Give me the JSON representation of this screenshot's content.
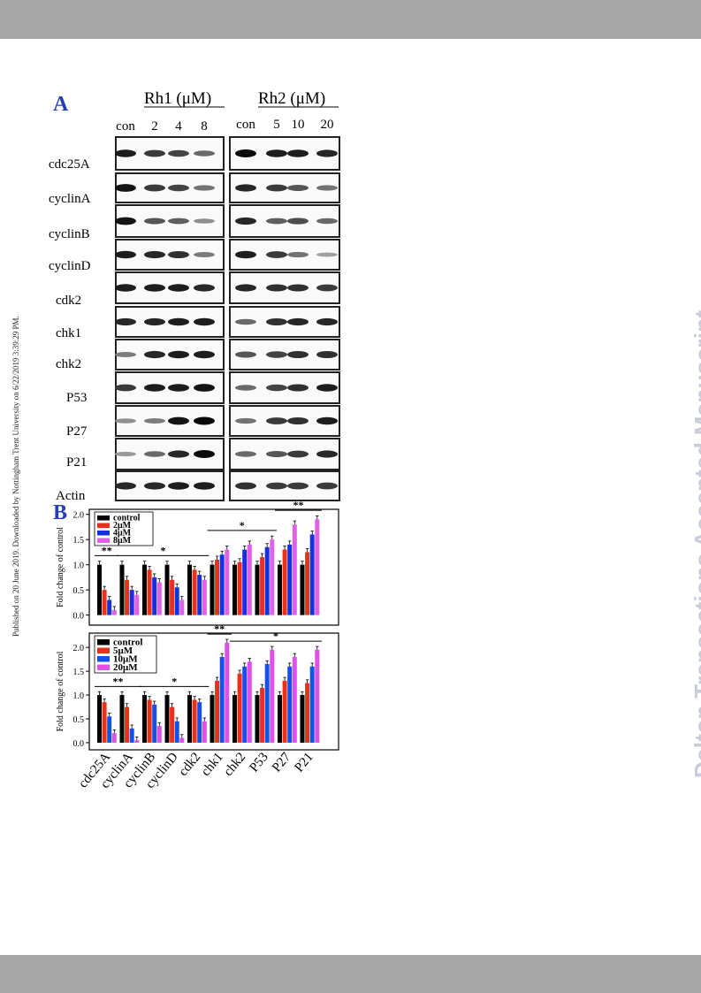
{
  "header_bar_color": "#a7a7a7",
  "sidenote": "Published on 20 June 2019. Downloaded by Nottingham Trent University on 6/22/2019 3:39:29 PM.",
  "watermark": "Dalton Transactions Accepted Manuscript",
  "panel_a": {
    "label": "A",
    "group1": {
      "title": "Rh1 (μM)",
      "lanes": [
        "con",
        "2",
        "4",
        "8"
      ]
    },
    "group2": {
      "title": "Rh2 (μM)",
      "lanes": [
        "con",
        "5",
        "10",
        "20"
      ]
    },
    "proteins": [
      "cdc25A",
      "cyclinA",
      "cyclinB",
      "cyclinD",
      "cdk2",
      "chk1",
      "chk2",
      "P53",
      "P27",
      "P21",
      "Actin"
    ],
    "band_intensity_g1": [
      [
        0.9,
        0.75,
        0.7,
        0.5
      ],
      [
        0.95,
        0.75,
        0.7,
        0.45
      ],
      [
        0.95,
        0.6,
        0.55,
        0.3
      ],
      [
        0.9,
        0.85,
        0.8,
        0.4
      ],
      [
        0.9,
        0.9,
        0.9,
        0.85
      ],
      [
        0.85,
        0.85,
        0.9,
        0.9
      ],
      [
        0.4,
        0.85,
        0.9,
        0.9
      ],
      [
        0.75,
        0.9,
        0.9,
        0.95
      ],
      [
        0.3,
        0.4,
        0.95,
        1.0
      ],
      [
        0.25,
        0.5,
        0.85,
        1.0
      ],
      [
        0.85,
        0.85,
        0.9,
        0.9
      ]
    ],
    "band_intensity_g2": [
      [
        1.0,
        0.9,
        0.9,
        0.85
      ],
      [
        0.85,
        0.75,
        0.6,
        0.45
      ],
      [
        0.85,
        0.55,
        0.65,
        0.5
      ],
      [
        0.9,
        0.75,
        0.45,
        0.2
      ],
      [
        0.85,
        0.8,
        0.8,
        0.75
      ],
      [
        0.5,
        0.8,
        0.85,
        0.85
      ],
      [
        0.6,
        0.7,
        0.8,
        0.8
      ],
      [
        0.5,
        0.7,
        0.8,
        0.9
      ],
      [
        0.45,
        0.75,
        0.8,
        0.9
      ],
      [
        0.5,
        0.6,
        0.75,
        0.85
      ],
      [
        0.8,
        0.75,
        0.75,
        0.75
      ]
    ]
  },
  "chart_data": [
    {
      "type": "bar",
      "panel_label": "B",
      "ylabel": "Fold change of control",
      "ylim": [
        -0.2,
        2.1
      ],
      "yticks": [
        "0.0",
        "0.5",
        "1.0",
        "1.5",
        "2.0"
      ],
      "categories": [
        "cdc25A",
        "cyclinA",
        "cyclinB",
        "cyclinD",
        "cdk2",
        "chk1",
        "chk2",
        "P53",
        "P27",
        "P21"
      ],
      "legend_position": "top-left",
      "series": [
        {
          "name": "control",
          "color": "#000000",
          "values": [
            1.0,
            1.0,
            1.0,
            1.0,
            1.0,
            1.0,
            1.0,
            1.0,
            1.0,
            1.0
          ]
        },
        {
          "name": "2μM",
          "color": "#e8311a",
          "values": [
            0.5,
            0.7,
            0.9,
            0.7,
            0.9,
            1.1,
            1.05,
            1.15,
            1.3,
            1.25
          ]
        },
        {
          "name": "4μM",
          "color": "#1530e0",
          "values": [
            0.3,
            0.5,
            0.75,
            0.55,
            0.8,
            1.2,
            1.3,
            1.35,
            1.4,
            1.6
          ]
        },
        {
          "name": "8μM",
          "color": "#e060e8",
          "values": [
            0.1,
            0.4,
            0.65,
            0.3,
            0.7,
            1.3,
            1.4,
            1.5,
            1.8,
            1.9
          ]
        }
      ],
      "significance": [
        {
          "label": "**",
          "from": 0,
          "to": 0
        },
        {
          "label": "*",
          "from": 1,
          "to": 4
        },
        {
          "label": "*",
          "from": 5,
          "to": 7
        },
        {
          "label": "**",
          "from": 8,
          "to": 9
        }
      ]
    },
    {
      "type": "bar",
      "ylabel": "Fold change of control",
      "ylim": [
        -0.15,
        2.3
      ],
      "yticks": [
        "0.0",
        "0.5",
        "1.0",
        "1.5",
        "2.0"
      ],
      "categories": [
        "cdc25A",
        "cyclinA",
        "cyclinB",
        "cyclinD",
        "cdk2",
        "chk1",
        "chk2",
        "P53",
        "P27",
        "P21"
      ],
      "legend_position": "top-left",
      "series": [
        {
          "name": "control",
          "color": "#000000",
          "values": [
            1.0,
            1.0,
            1.0,
            1.0,
            1.0,
            1.0,
            1.0,
            1.0,
            1.0,
            1.0
          ]
        },
        {
          "name": "5μM",
          "color": "#e8311a",
          "values": [
            0.85,
            0.75,
            0.9,
            0.75,
            0.9,
            1.3,
            1.45,
            1.15,
            1.3,
            1.25
          ]
        },
        {
          "name": "10μM",
          "color": "#1550e8",
          "values": [
            0.55,
            0.3,
            0.8,
            0.45,
            0.85,
            1.8,
            1.6,
            1.65,
            1.6,
            1.6
          ]
        },
        {
          "name": "20μM",
          "color": "#e050e8",
          "values": [
            0.2,
            0.05,
            0.35,
            0.1,
            0.45,
            2.1,
            1.7,
            1.95,
            1.8,
            1.95
          ]
        }
      ],
      "significance": [
        {
          "label": "**",
          "from": 0,
          "to": 1
        },
        {
          "label": "*",
          "from": 2,
          "to": 4
        },
        {
          "label": "**",
          "from": 5,
          "to": 5
        },
        {
          "label": "*",
          "from": 6,
          "to": 9
        }
      ]
    }
  ]
}
